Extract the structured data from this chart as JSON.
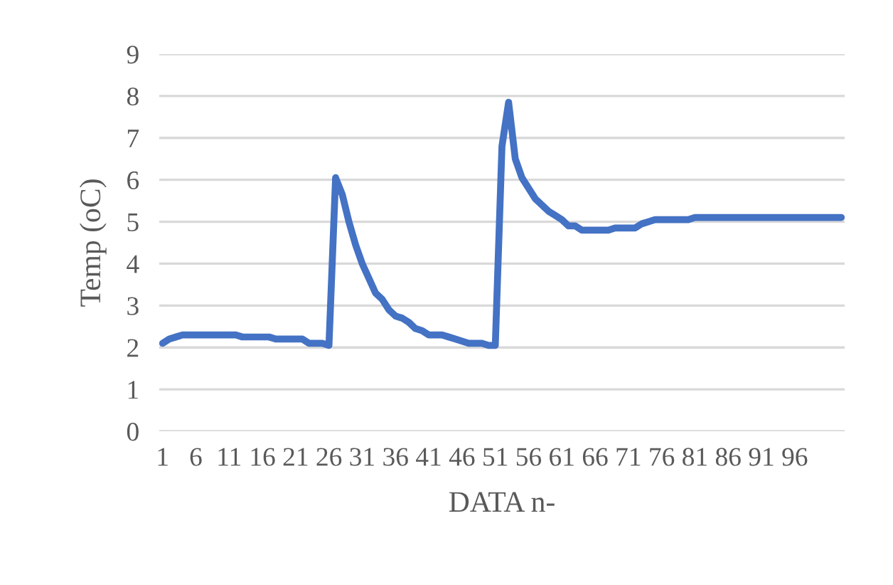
{
  "chart_data": {
    "type": "line",
    "xlabel": "DATA n-",
    "ylabel": "Temp (oC)",
    "categories": [
      "1",
      null,
      null,
      null,
      null,
      "6",
      null,
      null,
      null,
      null,
      "11",
      null,
      null,
      null,
      null,
      "16",
      null,
      null,
      null,
      null,
      "21",
      null,
      null,
      null,
      null,
      "26",
      null,
      null,
      null,
      null,
      "31",
      null,
      null,
      null,
      null,
      "36",
      null,
      null,
      null,
      null,
      "41",
      null,
      null,
      null,
      null,
      "46",
      null,
      null,
      null,
      null,
      "51",
      null,
      null,
      null,
      null,
      "56",
      null,
      null,
      null,
      null,
      "61",
      null,
      null,
      null,
      null,
      "66",
      null,
      null,
      null,
      null,
      "71",
      null,
      null,
      null,
      null,
      "76",
      null,
      null,
      null,
      null,
      "81",
      null,
      null,
      null,
      null,
      "86",
      null,
      null,
      null,
      null,
      "91",
      null,
      null,
      null,
      null,
      "96",
      null,
      null,
      null,
      null,
      null,
      null,
      null
    ],
    "series": [
      {
        "color": "#4472c4",
        "values": [
          2.1,
          2.2,
          2.25,
          2.3,
          2.3,
          2.3,
          2.3,
          2.3,
          2.3,
          2.3,
          2.3,
          2.3,
          2.25,
          2.25,
          2.25,
          2.25,
          2.25,
          2.2,
          2.2,
          2.2,
          2.2,
          2.2,
          2.1,
          2.1,
          2.1,
          2.05,
          6.05,
          5.65,
          5.0,
          4.45,
          4.0,
          3.65,
          3.3,
          3.15,
          2.9,
          2.75,
          2.7,
          2.6,
          2.45,
          2.4,
          2.3,
          2.3,
          2.3,
          2.25,
          2.2,
          2.15,
          2.1,
          2.1,
          2.1,
          2.05,
          2.05,
          6.8,
          7.85,
          6.5,
          6.05,
          5.8,
          5.55,
          5.4,
          5.25,
          5.15,
          5.05,
          4.9,
          4.9,
          4.8,
          4.8,
          4.8,
          4.8,
          4.8,
          4.85,
          4.85,
          4.85,
          4.85,
          4.95,
          5.0,
          5.05,
          5.05,
          5.05,
          5.05,
          5.05,
          5.05,
          5.1,
          5.1,
          5.1,
          5.1,
          5.1,
          5.1,
          5.1,
          5.1,
          5.1,
          5.1,
          5.1,
          5.1,
          5.1,
          5.1,
          5.1,
          5.1,
          5.1,
          5.1,
          5.1,
          5.1,
          5.1,
          5.1,
          5.1
        ]
      }
    ],
    "ylim": [
      0,
      9
    ],
    "yticks": [
      0,
      1,
      2,
      3,
      4,
      5,
      6,
      7,
      8,
      9
    ],
    "grid": "y",
    "legend": false,
    "marker": "none",
    "line_style": "solid"
  }
}
